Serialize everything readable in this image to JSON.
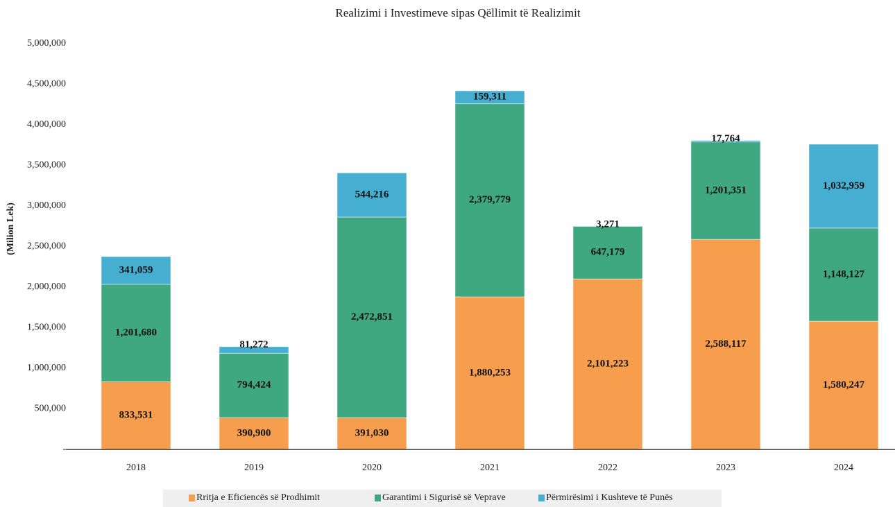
{
  "chart_data": {
    "type": "stacked_bar",
    "title": "Realizimi i Investimeve sipas Qëllimit të Realizimit",
    "y_label": "(Milion Lek)",
    "categories": [
      "2018",
      "2019",
      "2020",
      "2021",
      "2022",
      "2023",
      "2024"
    ],
    "series": [
      {
        "name": "Rritja e Eficiencës së Prodhimit",
        "color": "#f79e4e",
        "values": [
          833531,
          390900,
          391030,
          1880253,
          2101223,
          2588117,
          1580247
        ],
        "value_labels": [
          "833,531",
          "390,900",
          "391,030",
          "1,880,253",
          "2,101,223",
          "2,588,117",
          "1,580,247"
        ]
      },
      {
        "name": "Garantimi i Sigurisë së Veprave",
        "color": "#3fa880",
        "values": [
          1201680,
          794424,
          2472851,
          2379779,
          647179,
          1201351,
          1148127
        ],
        "value_labels": [
          "1,201,680",
          "794,424",
          "2,472,851",
          "2,379,779",
          "647,179",
          "1,201,351",
          "1,148,127"
        ]
      },
      {
        "name": "Përmirësimi i Kushteve të Punës",
        "color": "#46aed0",
        "values": [
          341059,
          81272,
          544216,
          159311,
          3271,
          17764,
          1032959
        ],
        "value_labels": [
          "341,059",
          "81,272",
          "544,216",
          "159,311",
          "3,271",
          "17,764",
          "1,032,959"
        ]
      }
    ],
    "ylim": [
      0,
      5000000
    ],
    "yticks": [
      {
        "value": 0,
        "label": "-"
      },
      {
        "value": 500000,
        "label": "500,000"
      },
      {
        "value": 1000000,
        "label": "1,000,000"
      },
      {
        "value": 1500000,
        "label": "1,500,000"
      },
      {
        "value": 2000000,
        "label": "2,000,000"
      },
      {
        "value": 2500000,
        "label": "2,500,000"
      },
      {
        "value": 3000000,
        "label": "3,000,000"
      },
      {
        "value": 3500000,
        "label": "3,500,000"
      },
      {
        "value": 4000000,
        "label": "4,000,000"
      },
      {
        "value": 4500000,
        "label": "4,500,000"
      },
      {
        "value": 5000000,
        "label": "5,000,000"
      }
    ],
    "grid": false,
    "legend": "bottom"
  }
}
